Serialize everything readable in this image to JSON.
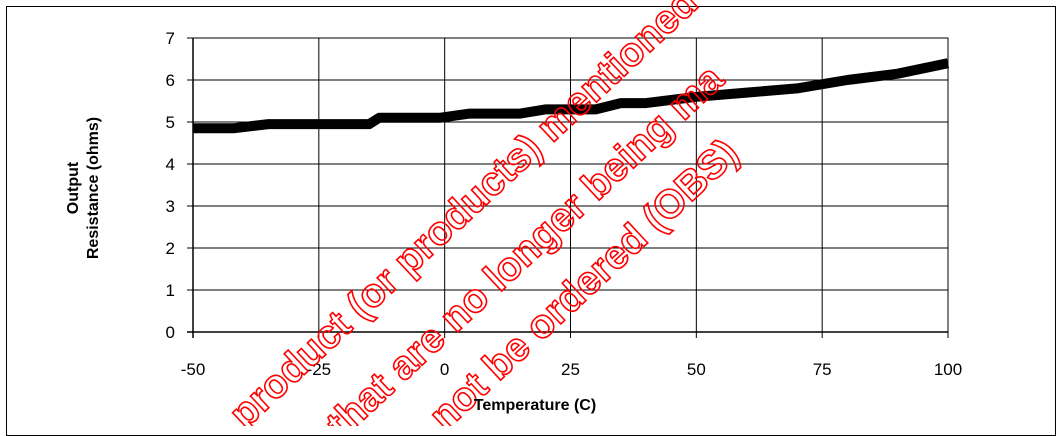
{
  "chart_data": {
    "type": "line",
    "title": "",
    "xlabel": "Temperature (C)",
    "ylabel_lines": [
      "Output",
      "Resistance (ohms)"
    ],
    "xlim": [
      -50,
      100
    ],
    "ylim": [
      0,
      7
    ],
    "x_ticks": [
      -50,
      -25,
      0,
      25,
      50,
      75,
      100
    ],
    "y_ticks": [
      0,
      1,
      2,
      3,
      4,
      5,
      6,
      7
    ],
    "grid": true,
    "legend": "none",
    "line_color": "#000000",
    "series": [
      {
        "x": [
          -50,
          -42,
          -35,
          -25,
          -15,
          -13,
          -1,
          5,
          15,
          20,
          30,
          35,
          40,
          50,
          60,
          70,
          80,
          90,
          100
        ],
        "y": [
          4.85,
          4.85,
          4.95,
          4.95,
          4.95,
          5.1,
          5.1,
          5.2,
          5.2,
          5.3,
          5.3,
          5.45,
          5.45,
          5.6,
          5.7,
          5.8,
          6.0,
          6.15,
          6.4
        ]
      }
    ]
  },
  "watermark": {
    "lines": [
      "product (or products) mentioned",
      "that are no longer being ma",
      "not be ordered (OBS)"
    ],
    "color": "#ff0000"
  }
}
